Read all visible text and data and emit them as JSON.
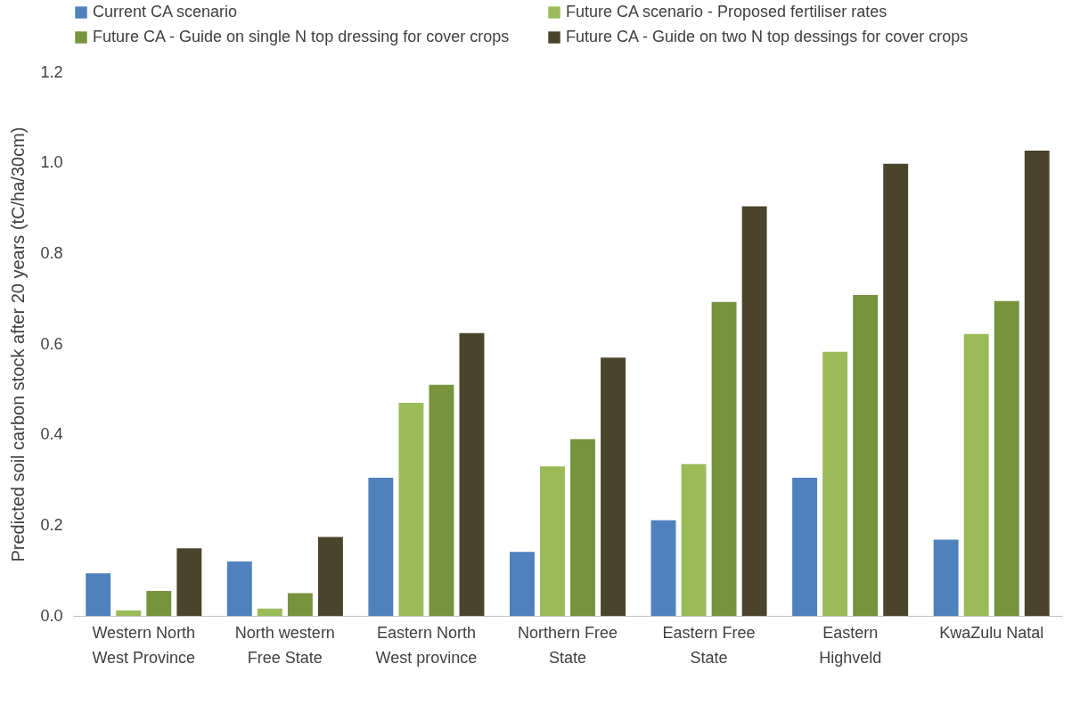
{
  "chart_data": {
    "type": "bar",
    "ylabel": "Predicted soil carbon stock after 20 years (tC/ha/30cm)",
    "categories": [
      "Western North West Province",
      "North western Free State",
      "Eastern North West province",
      "Northern Free State",
      "Eastern Free State",
      "Eastern Highveld",
      "KwaZulu Natal"
    ],
    "series": [
      {
        "name": "Current CA scenario",
        "color": "#4f81bd",
        "values": [
          0.094,
          0.12,
          0.305,
          0.141,
          0.211,
          0.305,
          0.168
        ]
      },
      {
        "name": "Future CA scenario - Proposed fertiliser rates",
        "color": "#9bbb59",
        "values": [
          0.012,
          0.016,
          0.47,
          0.33,
          0.335,
          0.583,
          0.622
        ]
      },
      {
        "name": "Future CA - Guide on single N top dressing for cover crops",
        "color": "#77933c",
        "values": [
          0.055,
          0.05,
          0.51,
          0.39,
          0.693,
          0.708,
          0.695
        ]
      },
      {
        "name": "Future CA - Guide on two N top dessings for cover crops",
        "color": "#4a452a",
        "values": [
          0.149,
          0.174,
          0.624,
          0.57,
          0.904,
          0.998,
          1.027
        ]
      }
    ],
    "ylim": [
      0,
      1.2
    ],
    "yticks": [
      {
        "value": 0,
        "label": "0.0"
      },
      {
        "value": 0.2,
        "label": "0.2"
      },
      {
        "value": 0.4,
        "label": "0.4"
      },
      {
        "value": 0.6,
        "label": "0.6"
      },
      {
        "value": 0.8,
        "label": "0.8"
      },
      {
        "value": 1,
        "label": "1.0"
      },
      {
        "value": 1.2,
        "label": "1.2"
      }
    ],
    "grid": false,
    "legend": "top left"
  }
}
